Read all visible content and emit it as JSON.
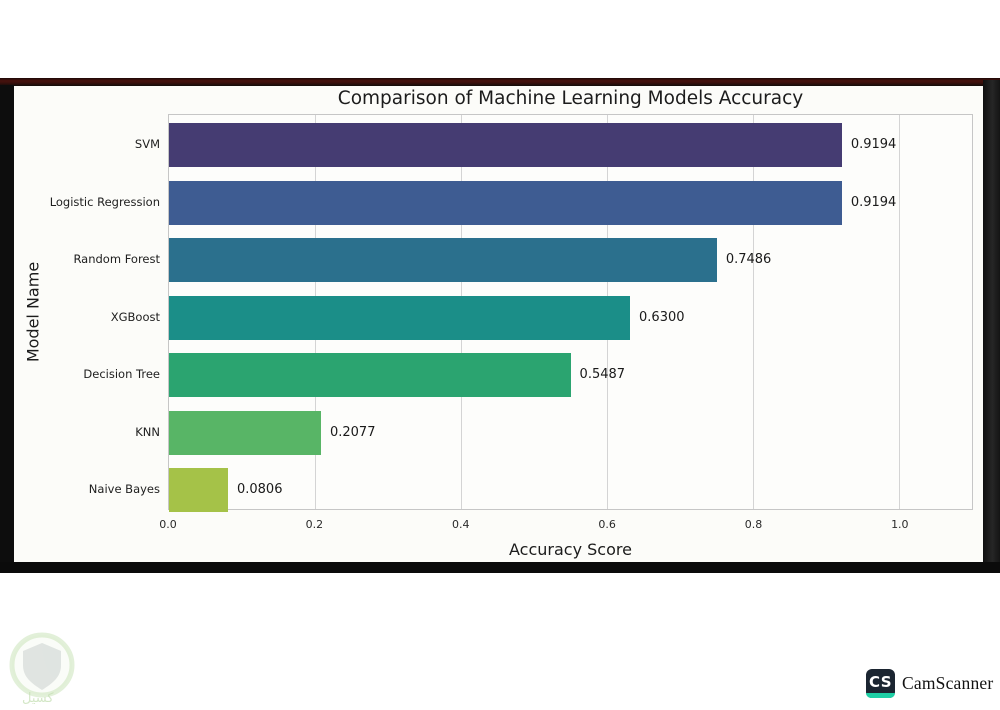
{
  "scan_frame": {
    "top_line_color": "#47120e",
    "border_color": "#0d0d0d",
    "sheet_color": "#fcfcf9"
  },
  "chart_data": {
    "type": "bar",
    "orientation": "horizontal",
    "title": "Comparison of Machine Learning Models Accuracy",
    "xlabel": "Accuracy Score",
    "ylabel": "Model Name",
    "categories": [
      "SVM",
      "Logistic Regression",
      "Random Forest",
      "XGBoost",
      "Decision Tree",
      "KNN",
      "Naive Bayes"
    ],
    "values": [
      0.9194,
      0.9194,
      0.7486,
      0.63,
      0.5487,
      0.2077,
      0.0806
    ],
    "value_labels": [
      "0.9194",
      "0.9194",
      "0.7486",
      "0.6300",
      "0.5487",
      "0.2077",
      "0.0806"
    ],
    "bar_colors": [
      "#453c72",
      "#3e5c92",
      "#2b708d",
      "#1b8e88",
      "#2ba470",
      "#58b566",
      "#a5c248"
    ],
    "xlim": [
      0,
      1.1
    ],
    "x_ticks": [
      0.0,
      0.2,
      0.4,
      0.6,
      0.8,
      1.0
    ],
    "x_tick_labels": [
      "0.0",
      "0.2",
      "0.4",
      "0.6",
      "0.8",
      "1.0"
    ],
    "grid": true,
    "gridline_color": "#d4d4d4",
    "legend": "none"
  },
  "footer": {
    "camscanner_badge": "CS",
    "camscanner_label": "CamScanner",
    "badge_bg": "#1b2531",
    "badge_accent": "#1ecfa5",
    "watermark_text": "كسيل"
  }
}
